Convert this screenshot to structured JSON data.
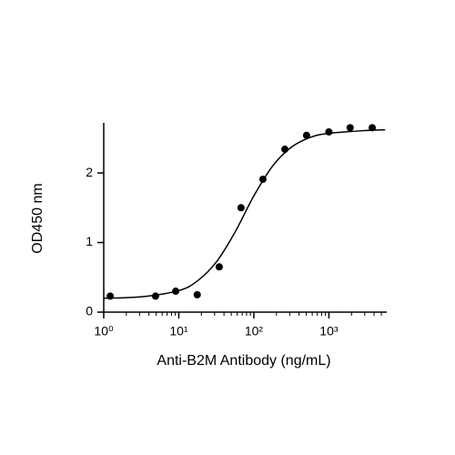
{
  "chart_data": {
    "type": "scatter",
    "xlabel": "Anti-B2M Antibody (ng/mL)",
    "ylabel": "OD450 nm",
    "xscale": "log",
    "xlim": [
      1,
      5900
    ],
    "ylim": [
      0,
      2.72
    ],
    "xticks": [
      {
        "value": 1,
        "label": "10⁰"
      },
      {
        "value": 10,
        "label": "10¹"
      },
      {
        "value": 100,
        "label": "10²"
      },
      {
        "value": 1000,
        "label": "10³"
      }
    ],
    "xminorticks": [
      2,
      3,
      4,
      5,
      6,
      7,
      8,
      9,
      20,
      30,
      40,
      50,
      60,
      70,
      80,
      90,
      200,
      300,
      400,
      500,
      600,
      700,
      800,
      900,
      2000,
      3000,
      4000,
      5000
    ],
    "yticks": [
      0,
      1,
      2
    ],
    "series": [
      {
        "kind": "points",
        "color": "#000000",
        "x": [
          1.22,
          4.9,
          9.1,
          17.6,
          34.6,
          67.5,
          132,
          259,
          504,
          1000,
          1920,
          3780
        ],
        "values": [
          0.23,
          0.23,
          0.3,
          0.25,
          0.65,
          1.5,
          1.91,
          2.34,
          2.54,
          2.59,
          2.65,
          2.65
        ]
      },
      {
        "kind": "curve",
        "color": "#000000",
        "x": [
          1,
          3.16,
          10,
          17.8,
          31.6,
          56.2,
          100,
          178,
          316,
          562,
          1000,
          3162,
          5623
        ],
        "values": [
          0.2,
          0.22,
          0.31,
          0.45,
          0.72,
          1.15,
          1.67,
          2.1,
          2.37,
          2.51,
          2.57,
          2.61,
          2.62
        ]
      }
    ]
  }
}
